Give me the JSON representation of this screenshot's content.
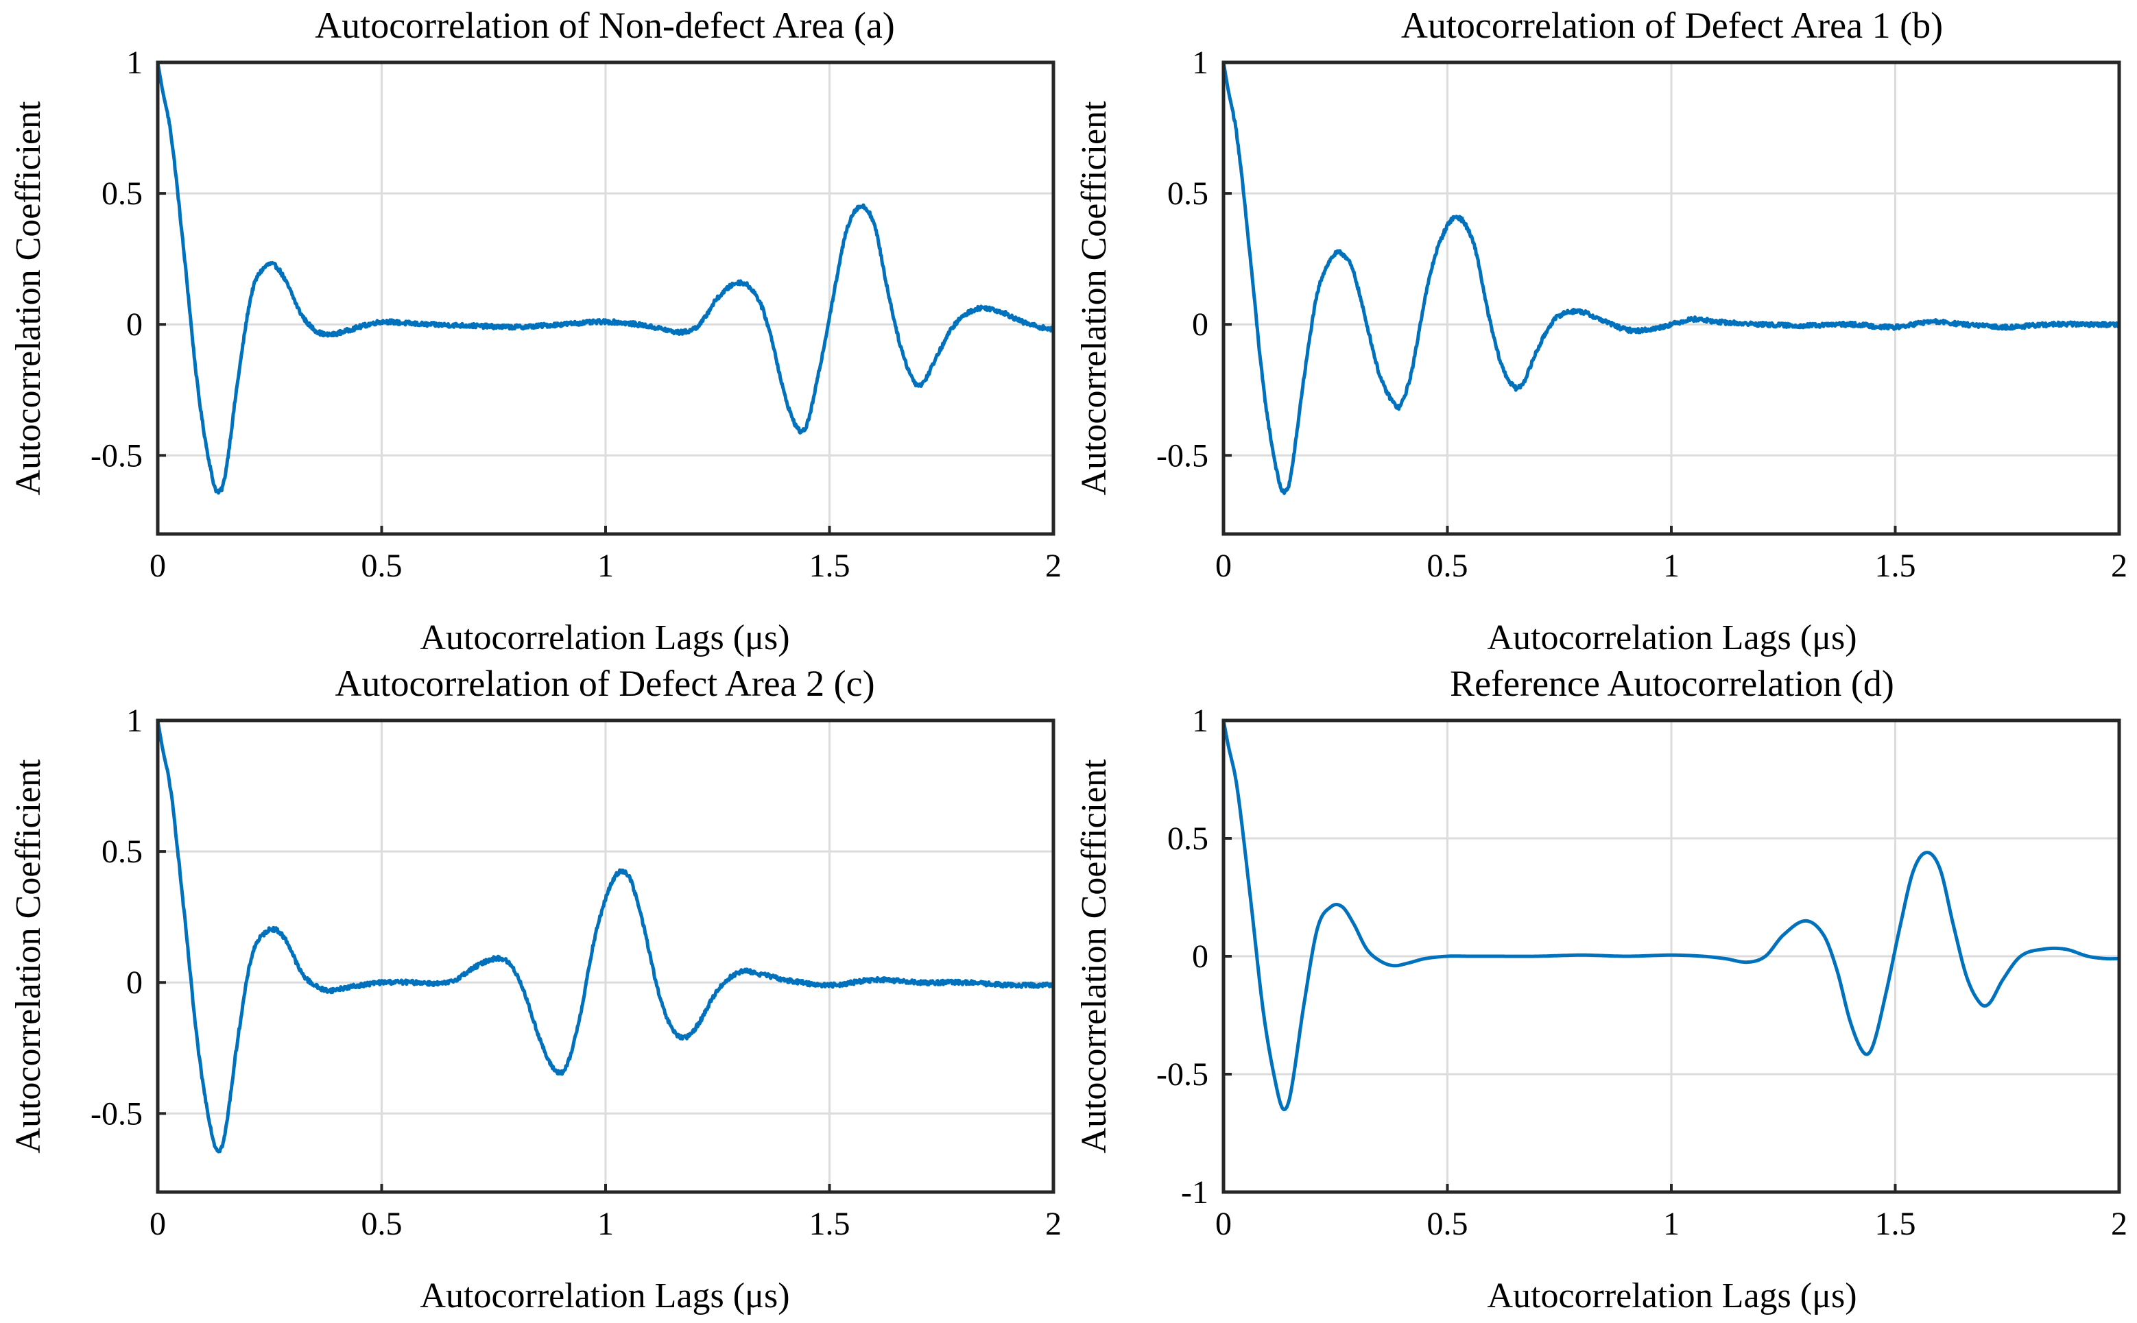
{
  "chart_data": [
    {
      "type": "line",
      "title": "Autocorrelation of Non-defect Area (a)",
      "xlabel": "Autocorrelation Lags (μs)",
      "ylabel": "Autocorrelation Coefficient",
      "xlim": [
        0,
        2
      ],
      "ylim": [
        -0.8,
        1
      ],
      "xticks": [
        0,
        0.5,
        1,
        1.5,
        2
      ],
      "xtick_labels": [
        "0",
        "0.5",
        "1",
        "1.5",
        "2"
      ],
      "yticks": [
        -0.5,
        0,
        0.5,
        1
      ],
      "ytick_labels": [
        "-0.5",
        "0",
        "0.5",
        "1"
      ],
      "grid": true,
      "color": "#0072bd",
      "noise": 0.008,
      "series": [
        {
          "name": "Autocorrelation",
          "x": [
            0,
            0.01,
            0.03,
            0.06,
            0.09,
            0.12,
            0.135,
            0.15,
            0.18,
            0.21,
            0.24,
            0.265,
            0.29,
            0.32,
            0.35,
            0.38,
            0.41,
            0.45,
            0.5,
            0.55,
            0.6,
            0.7,
            0.8,
            0.9,
            1.0,
            1.07,
            1.12,
            1.17,
            1.21,
            1.25,
            1.3,
            1.34,
            1.37,
            1.4,
            1.43,
            1.45,
            1.48,
            1.51,
            1.54,
            1.57,
            1.6,
            1.63,
            1.66,
            1.69,
            1.71,
            1.74,
            1.78,
            1.83,
            1.88,
            1.93,
            1.97,
            2.0
          ],
          "y": [
            1.0,
            0.9,
            0.72,
            0.25,
            -0.25,
            -0.57,
            -0.64,
            -0.58,
            -0.2,
            0.12,
            0.22,
            0.22,
            0.15,
            0.04,
            -0.02,
            -0.04,
            -0.03,
            -0.01,
            0.01,
            0.005,
            0.0,
            -0.005,
            -0.01,
            0.0,
            0.01,
            0.0,
            -0.015,
            -0.03,
            0.0,
            0.1,
            0.16,
            0.1,
            -0.05,
            -0.27,
            -0.4,
            -0.38,
            -0.15,
            0.12,
            0.37,
            0.45,
            0.38,
            0.13,
            -0.09,
            -0.22,
            -0.22,
            -0.12,
            0.0,
            0.06,
            0.05,
            0.01,
            -0.01,
            -0.02
          ]
        }
      ]
    },
    {
      "type": "line",
      "title": "Autocorrelation of Defect Area 1 (b)",
      "xlabel": "Autocorrelation Lags (μs)",
      "ylabel": "Autocorrelation Coefficient",
      "xlim": [
        0,
        2
      ],
      "ylim": [
        -0.8,
        1
      ],
      "xticks": [
        0,
        0.5,
        1,
        1.5,
        2
      ],
      "xtick_labels": [
        "0",
        "0.5",
        "1",
        "1.5",
        "2"
      ],
      "yticks": [
        -0.5,
        0,
        0.5,
        1
      ],
      "ytick_labels": [
        "-0.5",
        "0",
        "0.5",
        "1"
      ],
      "grid": true,
      "color": "#0072bd",
      "noise": 0.008,
      "series": [
        {
          "name": "Autocorrelation",
          "x": [
            0,
            0.01,
            0.03,
            0.06,
            0.09,
            0.12,
            0.135,
            0.15,
            0.18,
            0.21,
            0.24,
            0.265,
            0.29,
            0.32,
            0.35,
            0.38,
            0.395,
            0.42,
            0.45,
            0.48,
            0.52,
            0.56,
            0.59,
            0.62,
            0.65,
            0.67,
            0.7,
            0.74,
            0.79,
            0.84,
            0.9,
            0.95,
            1.0,
            1.05,
            1.1,
            1.2,
            1.3,
            1.4,
            1.5,
            1.58,
            1.65,
            1.75,
            1.85,
            1.95,
            2.0
          ],
          "y": [
            1.0,
            0.9,
            0.72,
            0.25,
            -0.25,
            -0.57,
            -0.64,
            -0.58,
            -0.2,
            0.12,
            0.25,
            0.27,
            0.2,
            0.0,
            -0.2,
            -0.3,
            -0.31,
            -0.18,
            0.1,
            0.3,
            0.41,
            0.3,
            0.05,
            -0.15,
            -0.24,
            -0.22,
            -0.1,
            0.02,
            0.05,
            0.02,
            -0.02,
            -0.02,
            0.0,
            0.02,
            0.01,
            0.0,
            -0.005,
            0.0,
            -0.01,
            0.01,
            0.0,
            -0.01,
            0.0,
            0.0,
            0.0
          ]
        }
      ]
    },
    {
      "type": "line",
      "title": "Autocorrelation of Defect Area 2 (c)",
      "xlabel": "Autocorrelation Lags (μs)",
      "ylabel": "Autocorrelation Coefficient",
      "xlim": [
        0,
        2
      ],
      "ylim": [
        -0.8,
        1
      ],
      "xticks": [
        0,
        0.5,
        1,
        1.5,
        2
      ],
      "xtick_labels": [
        "0",
        "0.5",
        "1",
        "1.5",
        "2"
      ],
      "yticks": [
        -0.5,
        0,
        0.5,
        1
      ],
      "ytick_labels": [
        "-0.5",
        "0",
        "0.5",
        "1"
      ],
      "grid": true,
      "color": "#0072bd",
      "noise": 0.008,
      "series": [
        {
          "name": "Autocorrelation",
          "x": [
            0,
            0.01,
            0.03,
            0.06,
            0.09,
            0.12,
            0.135,
            0.15,
            0.18,
            0.21,
            0.24,
            0.265,
            0.29,
            0.32,
            0.35,
            0.38,
            0.42,
            0.5,
            0.58,
            0.65,
            0.71,
            0.75,
            0.78,
            0.81,
            0.85,
            0.88,
            0.91,
            0.94,
            0.98,
            1.02,
            1.05,
            1.08,
            1.12,
            1.15,
            1.18,
            1.21,
            1.25,
            1.3,
            1.35,
            1.4,
            1.5,
            1.6,
            1.7,
            1.8,
            1.9,
            2.0
          ],
          "y": [
            1.0,
            0.9,
            0.72,
            0.25,
            -0.25,
            -0.57,
            -0.64,
            -0.58,
            -0.2,
            0.1,
            0.19,
            0.2,
            0.15,
            0.04,
            -0.01,
            -0.03,
            -0.02,
            0.0,
            0.0,
            0.0,
            0.06,
            0.09,
            0.08,
            0.0,
            -0.2,
            -0.32,
            -0.33,
            -0.15,
            0.2,
            0.4,
            0.41,
            0.25,
            -0.05,
            -0.18,
            -0.21,
            -0.15,
            -0.03,
            0.04,
            0.03,
            0.01,
            -0.01,
            0.01,
            0.0,
            0.0,
            -0.01,
            -0.01
          ]
        }
      ]
    },
    {
      "type": "line",
      "title": "Reference Autocorrelation (d)",
      "xlabel": "Autocorrelation Lags (μs)",
      "ylabel": "Autocorrelation Coefficient",
      "xlim": [
        0,
        2
      ],
      "ylim": [
        -1,
        1
      ],
      "xticks": [
        0,
        0.5,
        1,
        1.5,
        2
      ],
      "xtick_labels": [
        "0",
        "0.5",
        "1",
        "1.5",
        "2"
      ],
      "yticks": [
        -1,
        -0.5,
        0,
        0.5,
        1
      ],
      "ytick_labels": [
        "-1",
        "-0.5",
        "0",
        "0.5",
        "1"
      ],
      "grid": true,
      "color": "#0072bd",
      "noise": 0,
      "series": [
        {
          "name": "Autocorrelation",
          "x": [
            0,
            0.01,
            0.03,
            0.06,
            0.09,
            0.12,
            0.135,
            0.15,
            0.18,
            0.21,
            0.24,
            0.265,
            0.29,
            0.32,
            0.35,
            0.38,
            0.41,
            0.45,
            0.5,
            0.55,
            0.6,
            0.7,
            0.8,
            0.9,
            1.0,
            1.07,
            1.12,
            1.17,
            1.21,
            1.25,
            1.3,
            1.34,
            1.37,
            1.4,
            1.43,
            1.45,
            1.48,
            1.51,
            1.54,
            1.57,
            1.6,
            1.63,
            1.66,
            1.69,
            1.71,
            1.74,
            1.78,
            1.83,
            1.88,
            1.93,
            1.97,
            2.0
          ],
          "y": [
            1.0,
            0.9,
            0.72,
            0.25,
            -0.25,
            -0.57,
            -0.65,
            -0.58,
            -0.2,
            0.12,
            0.21,
            0.21,
            0.14,
            0.03,
            -0.02,
            -0.04,
            -0.03,
            -0.01,
            0.0,
            0.0,
            0.0,
            0.0,
            0.005,
            0.0,
            0.005,
            0.0,
            -0.01,
            -0.025,
            0.0,
            0.09,
            0.15,
            0.09,
            -0.06,
            -0.28,
            -0.41,
            -0.38,
            -0.15,
            0.12,
            0.36,
            0.44,
            0.37,
            0.13,
            -0.09,
            -0.2,
            -0.2,
            -0.1,
            0.0,
            0.03,
            0.03,
            0.0,
            -0.01,
            -0.01
          ]
        }
      ]
    }
  ]
}
